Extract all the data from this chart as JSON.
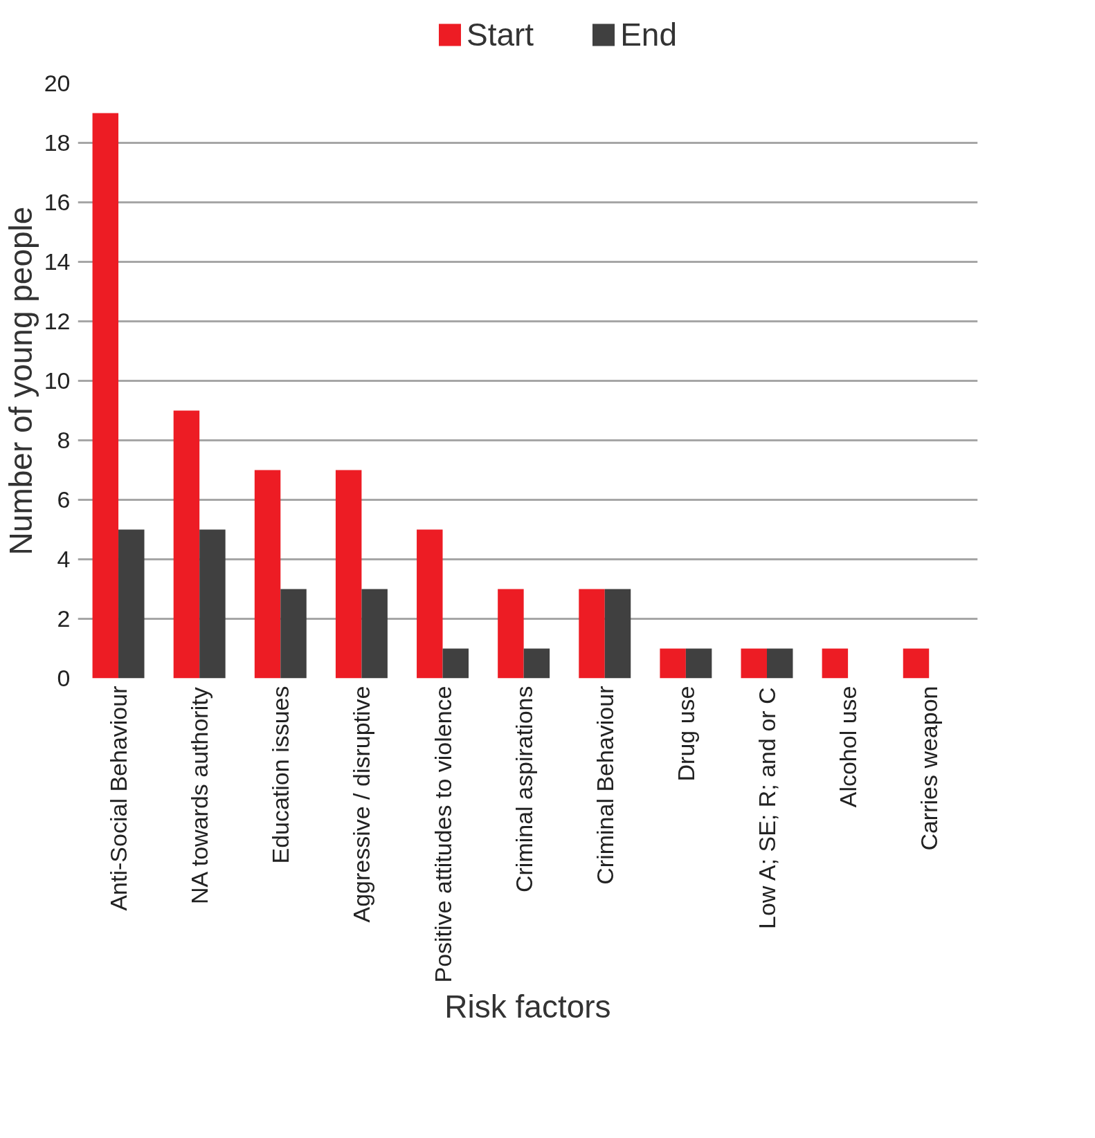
{
  "chart_data": {
    "type": "bar",
    "xlabel": "Risk factors",
    "ylabel": "Number of young people",
    "categories": [
      "Anti-Social Behaviour",
      "NA towards authority",
      "Education issues",
      "Aggressive / disruptive",
      "Positive attitudes to violence",
      "Criminal aspirations",
      "Criminal Behaviour",
      "Drug use",
      "Low A; SE; R; and or C",
      "Alcohol use",
      "Carries weapon"
    ],
    "series": [
      {
        "name": "Start",
        "color": "#ed1c24",
        "values": [
          19,
          9,
          7,
          7,
          5,
          3,
          3,
          1,
          1,
          1,
          1
        ]
      },
      {
        "name": "End",
        "color": "#404040",
        "values": [
          5,
          5,
          3,
          3,
          1,
          1,
          3,
          1,
          1,
          0,
          0
        ]
      }
    ],
    "ylim": [
      0,
      20
    ],
    "yticks": [
      0,
      2,
      4,
      6,
      8,
      10,
      12,
      14,
      16,
      18,
      20
    ],
    "grid": "y",
    "legend": "top"
  }
}
